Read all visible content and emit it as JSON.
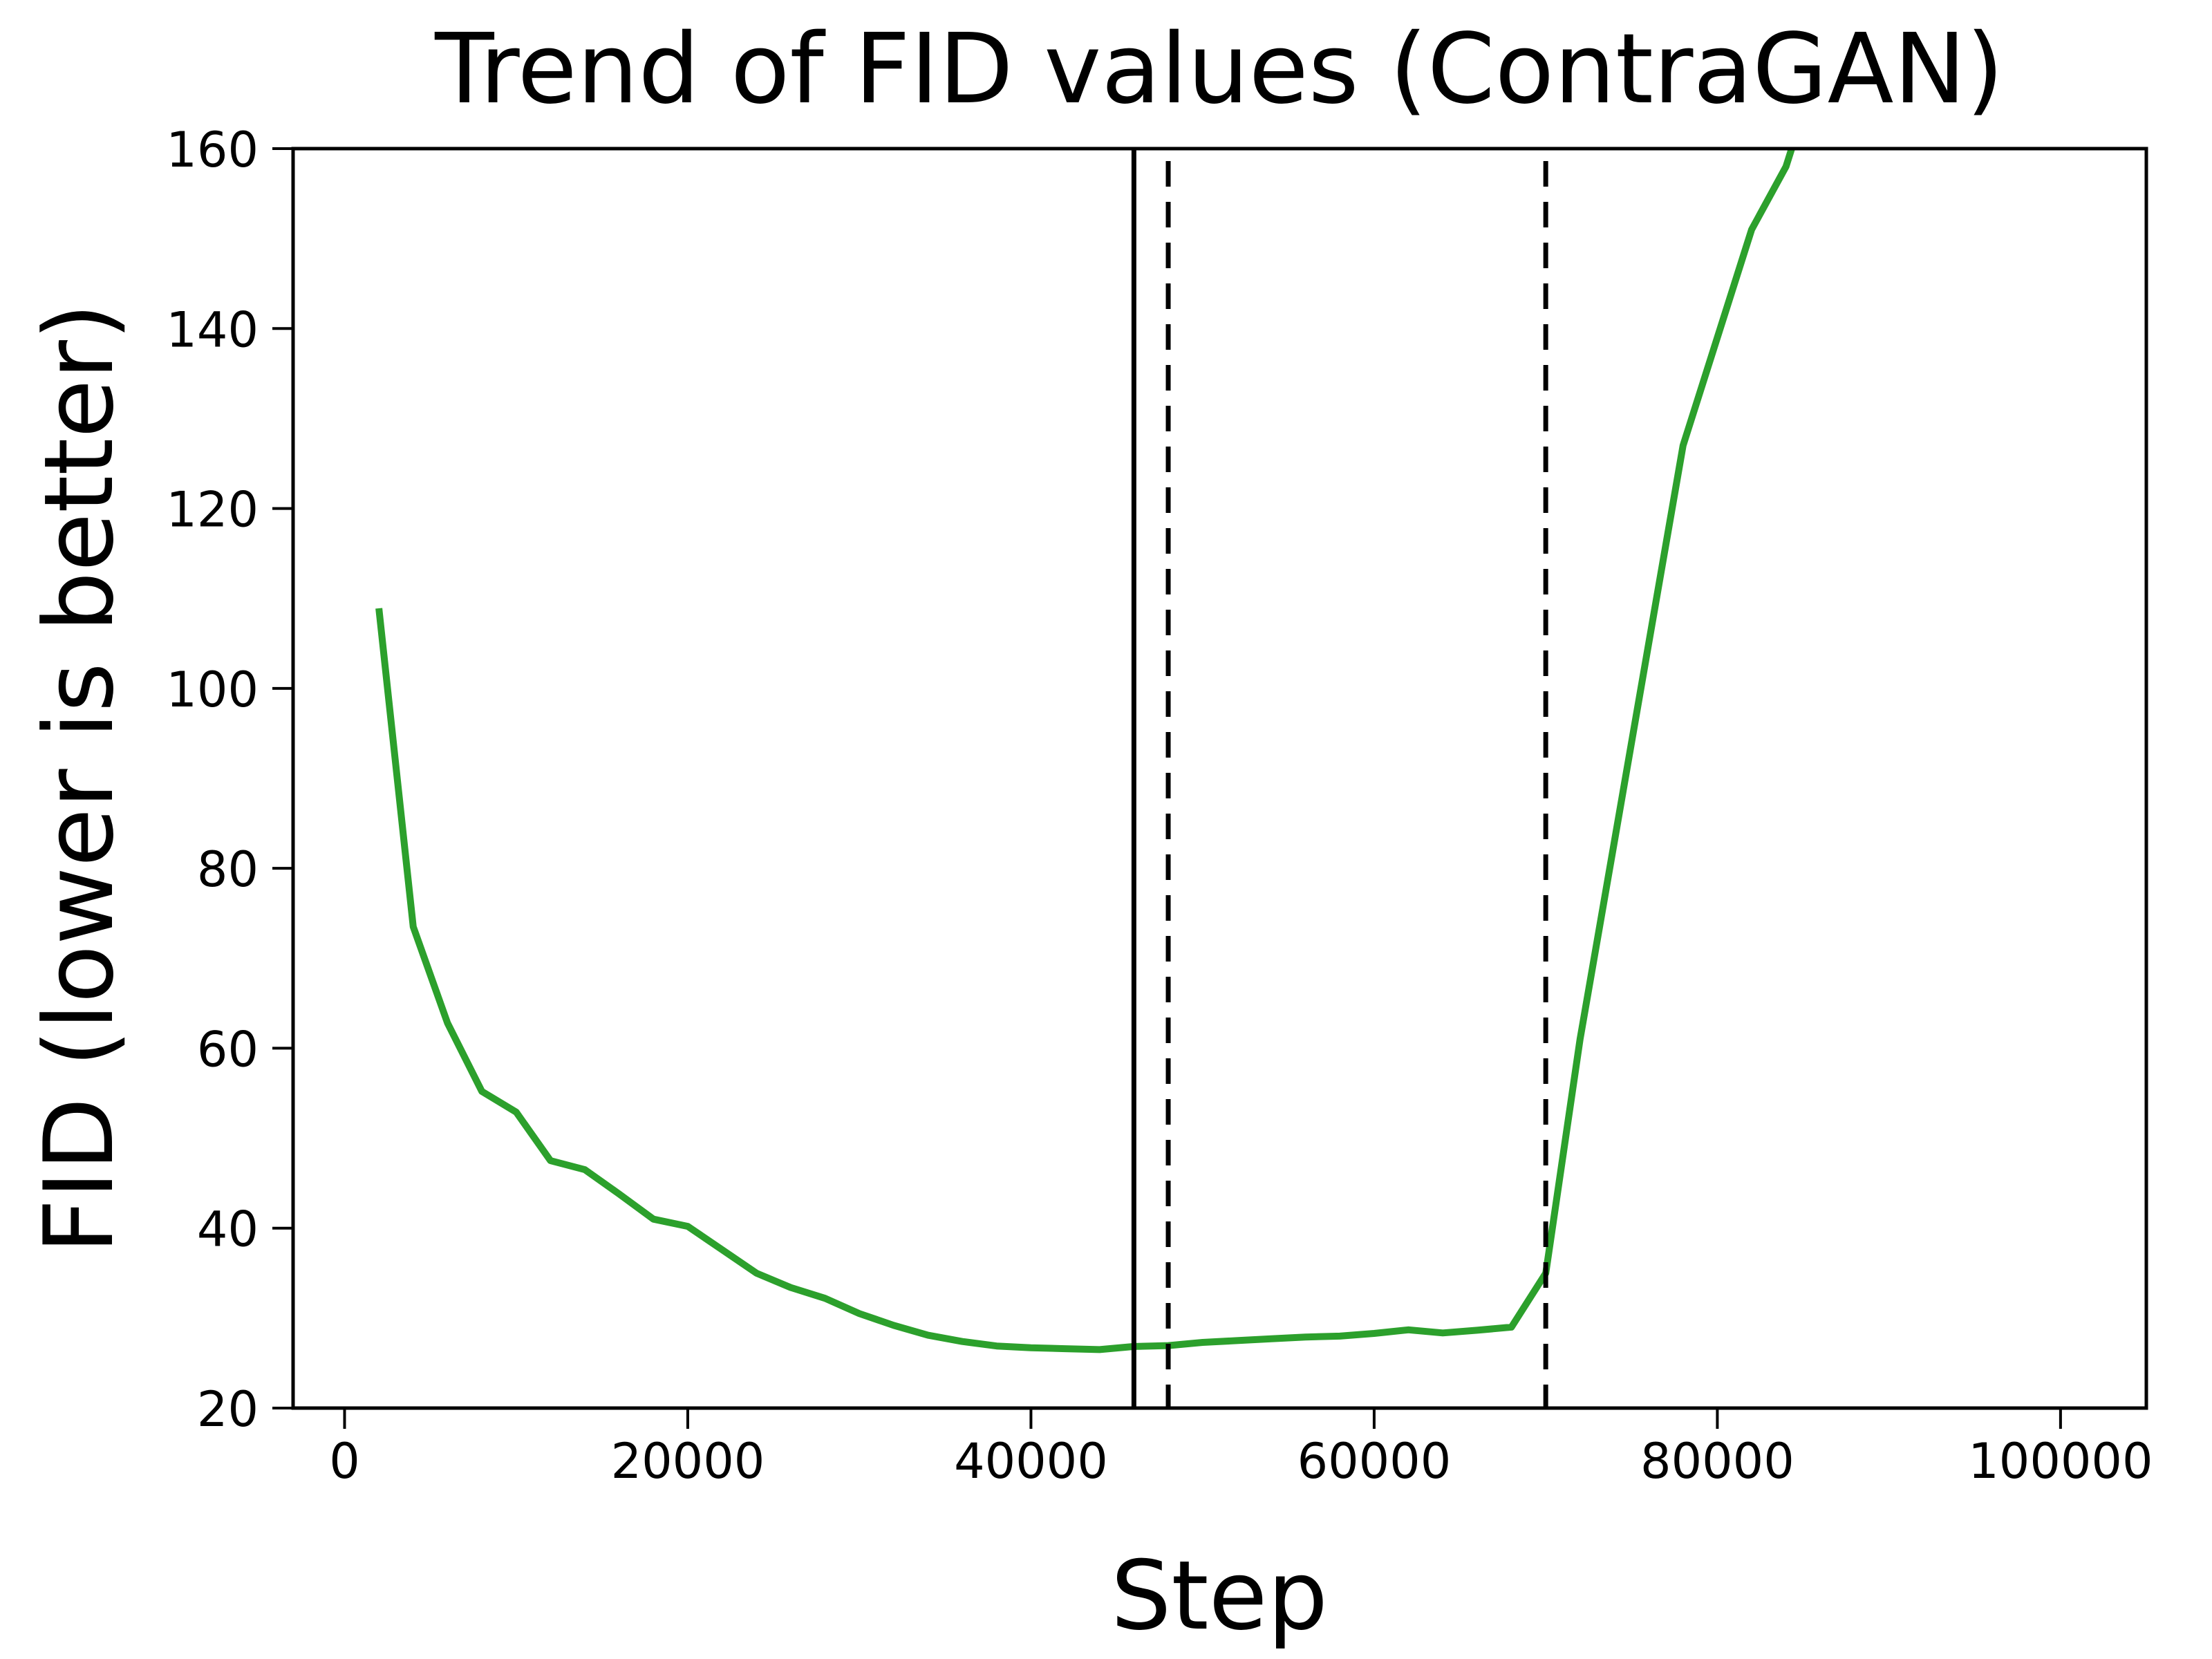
{
  "figure": {
    "background": "#ffffff",
    "text_color": "#000000"
  },
  "chart_data": {
    "type": "line",
    "title": "Trend of FID values (ContraGAN)",
    "xlabel": "Step",
    "ylabel": "FID (lower is better)",
    "xlim": [
      -3000,
      105000
    ],
    "ylim": [
      20,
      160
    ],
    "grid": false,
    "legend": null,
    "xticks": {
      "values": [
        0,
        20000,
        40000,
        60000,
        80000,
        100000
      ],
      "labels": [
        "0",
        "20000",
        "40000",
        "60000",
        "80000",
        "100000"
      ]
    },
    "yticks": {
      "values": [
        20,
        40,
        60,
        80,
        100,
        120,
        140,
        160
      ],
      "labels": [
        "20",
        "40",
        "60",
        "80",
        "100",
        "120",
        "140",
        "160"
      ]
    },
    "series": [
      {
        "name": "FID",
        "color": "#2ca02c",
        "x": [
          2000,
          4000,
          6000,
          8000,
          10000,
          12000,
          14000,
          16000,
          18000,
          20000,
          22000,
          24000,
          26000,
          28000,
          30000,
          32000,
          34000,
          36000,
          38000,
          40000,
          42000,
          44000,
          46000,
          48000,
          50000,
          52000,
          54000,
          56000,
          58000,
          60000,
          62000,
          64000,
          66000,
          68000,
          70000,
          72000,
          74000,
          76000,
          78000,
          80000,
          82000,
          84000,
          86000
        ],
        "y": [
          108.9,
          73.5,
          62.8,
          55.2,
          52.9,
          47.5,
          46.5,
          43.8,
          41.0,
          40.2,
          37.6,
          35.0,
          33.4,
          32.2,
          30.5,
          29.2,
          28.1,
          27.4,
          26.9,
          26.7,
          26.6,
          26.5,
          26.85,
          26.95,
          27.3,
          27.5,
          27.7,
          27.9,
          28.0,
          28.3,
          28.7,
          28.35,
          28.65,
          29.0,
          35.0,
          61.0,
          83.0,
          105.0,
          127.0,
          139.0,
          151.0,
          158.0,
          170.0
        ]
      }
    ],
    "vlines": [
      {
        "x": 46000,
        "style": "solid",
        "color": "#000000"
      },
      {
        "x": 48000,
        "style": "dashed",
        "color": "#000000"
      },
      {
        "x": 70000,
        "style": "dashed",
        "color": "#000000"
      }
    ]
  }
}
